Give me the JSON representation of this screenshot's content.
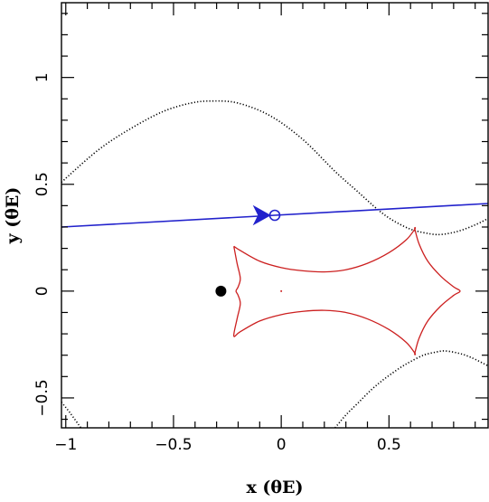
{
  "chart_data": {
    "type": "line",
    "title": "",
    "xlabel": "x (θE)",
    "ylabel": "y (θE)",
    "xlim": [
      -1.02,
      0.96
    ],
    "ylim": [
      -0.64,
      1.35
    ],
    "xticks": [
      -1,
      -0.5,
      0,
      0.5
    ],
    "xtick_labels": [
      "−1",
      "−0.5",
      "0",
      "0.5"
    ],
    "yticks": [
      -0.5,
      0,
      0.5,
      1
    ],
    "ytick_labels": [
      "−0.5",
      "0",
      "0.5",
      "1"
    ],
    "grid": false,
    "legend": "none",
    "colors": {
      "critical_curve": "#000000",
      "caustic": "#cc1f1f",
      "source_trajectory": "#2222cc",
      "lens": "#000000"
    },
    "series": [
      {
        "role": "critical_curve_upper",
        "style": "dotted",
        "x": [
          -1.02,
          -0.85,
          -0.7,
          -0.55,
          -0.42,
          -0.32,
          -0.2,
          -0.05,
          0.1,
          0.25,
          0.35,
          0.45,
          0.52,
          0.6,
          0.68,
          0.74,
          0.82,
          0.9,
          0.96
        ],
        "y": [
          0.51,
          0.66,
          0.76,
          0.84,
          0.88,
          0.89,
          0.88,
          0.82,
          0.71,
          0.56,
          0.47,
          0.38,
          0.33,
          0.29,
          0.27,
          0.265,
          0.28,
          0.31,
          0.34
        ]
      },
      {
        "role": "critical_curve_lower_right",
        "style": "dotted",
        "x": [
          0.25,
          0.3,
          0.36,
          0.42,
          0.48,
          0.55,
          0.6,
          0.66,
          0.72,
          0.76,
          0.82,
          0.88,
          0.96
        ],
        "y": [
          -0.64,
          -0.58,
          -0.52,
          -0.46,
          -0.41,
          -0.36,
          -0.33,
          -0.3,
          -0.285,
          -0.28,
          -0.29,
          -0.31,
          -0.35
        ]
      },
      {
        "role": "critical_curve_lower_left",
        "style": "dotted",
        "x": [
          -1.02,
          -0.98,
          -0.93
        ],
        "y": [
          -0.52,
          -0.57,
          -0.64
        ]
      },
      {
        "role": "caustic",
        "style": "solid",
        "x": [
          -0.22,
          -0.19,
          -0.1,
          0.0,
          0.1,
          0.2,
          0.3,
          0.4,
          0.5,
          0.58,
          0.62,
          0.62,
          0.64,
          0.68,
          0.74,
          0.8,
          0.83,
          0.8,
          0.74,
          0.68,
          0.64,
          0.62,
          0.62,
          0.58,
          0.5,
          0.4,
          0.3,
          0.2,
          0.1,
          0.0,
          -0.1,
          -0.19,
          -0.22,
          -0.205,
          -0.19,
          -0.2,
          -0.21,
          -0.2,
          -0.19,
          -0.205,
          -0.22
        ],
        "y": [
          0.21,
          0.19,
          0.14,
          0.11,
          0.095,
          0.09,
          0.1,
          0.13,
          0.18,
          0.24,
          0.29,
          0.29,
          0.22,
          0.14,
          0.07,
          0.02,
          0.0,
          -0.02,
          -0.07,
          -0.14,
          -0.22,
          -0.29,
          -0.29,
          -0.24,
          -0.18,
          -0.13,
          -0.1,
          -0.09,
          -0.095,
          -0.11,
          -0.14,
          -0.19,
          -0.21,
          -0.13,
          -0.06,
          -0.02,
          0.0,
          0.02,
          0.06,
          0.13,
          0.21
        ]
      },
      {
        "role": "source_trajectory",
        "style": "solid",
        "x": [
          -1.02,
          0.96
        ],
        "y": [
          0.3,
          0.41
        ]
      }
    ],
    "points": [
      {
        "role": "source_position",
        "marker": "open-circle",
        "x": -0.03,
        "y": 0.355
      },
      {
        "role": "lens_primary",
        "marker": "filled-circle",
        "x": -0.28,
        "y": 0.0
      },
      {
        "role": "lens_secondary",
        "marker": "dot",
        "x": 0.0,
        "y": 0.0
      }
    ],
    "annotations": [
      {
        "role": "direction_arrow",
        "x": -0.06,
        "y": 0.355,
        "direction": "right"
      }
    ]
  }
}
